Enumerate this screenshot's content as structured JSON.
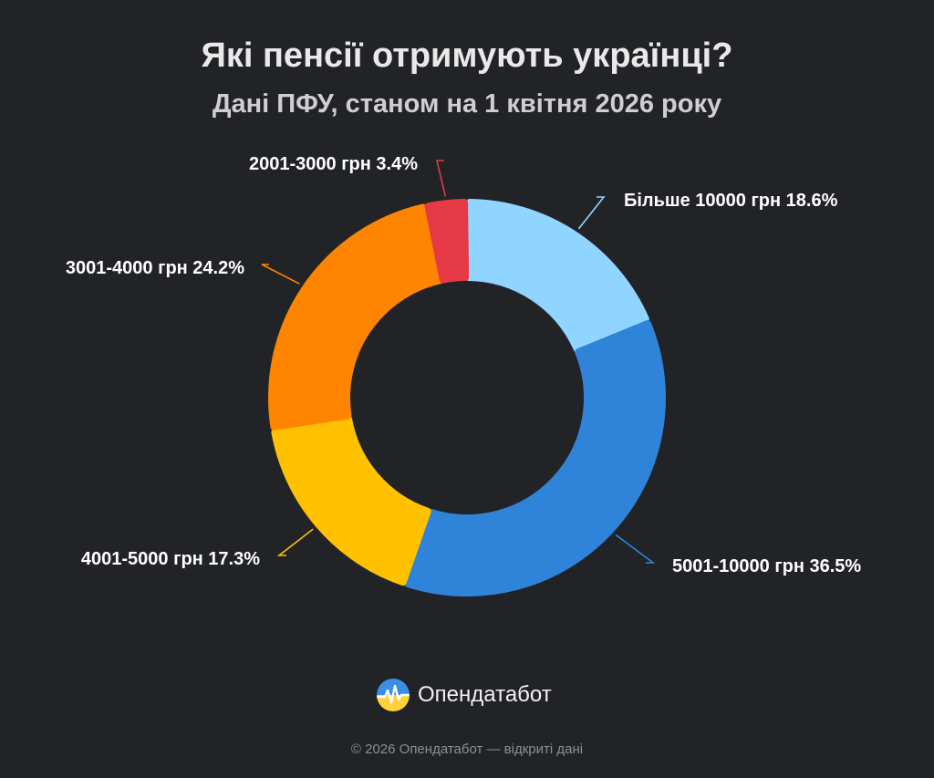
{
  "title": "Які пенсії отримують українці?",
  "subtitle": "Дані ПФУ, станом на 1 квітня 2026 року",
  "chart_data": {
    "type": "pie",
    "variant": "donut",
    "start_angle_deg": 0,
    "direction": "clockwise",
    "legend": "none",
    "slices": [
      {
        "category": "Більше 10000 грн",
        "label": "Більше 10000 грн 18.6%",
        "value": 18.6,
        "color": "#90d5ff"
      },
      {
        "category": "5001-10000 грн",
        "label": "5001-10000 грн 36.5%",
        "value": 36.5,
        "color": "#2f84d9"
      },
      {
        "category": "4001-5000 грн",
        "label": "4001-5000 грн 17.3%",
        "value": 17.3,
        "color": "#ffc100"
      },
      {
        "category": "3001-4000 грн",
        "label": "3001-4000 грн 24.2%",
        "value": 24.2,
        "color": "#ff8500"
      },
      {
        "category": "2001-3000 грн",
        "label": "2001-3000 грн 3.4%",
        "value": 3.4,
        "color": "#e63946"
      }
    ]
  },
  "logo": {
    "text": "Опендатабот"
  },
  "footer": {
    "copyright": "© 2026 Опендатабот — відкриті дані"
  }
}
